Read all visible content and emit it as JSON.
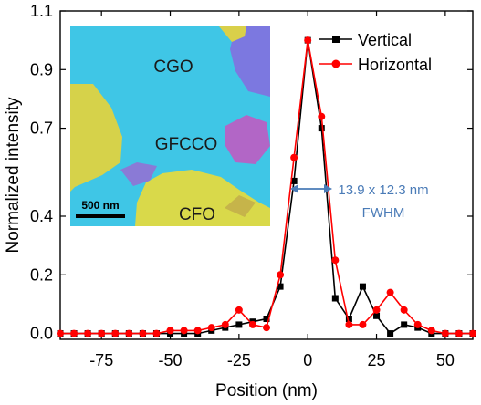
{
  "chart_data": {
    "type": "line",
    "xlabel": "Position (nm)",
    "ylabel": "Normalized intensity",
    "xlim": [
      -90,
      60
    ],
    "ylim": [
      -0.02,
      1.1
    ],
    "x_ticks": [
      -75,
      -50,
      -25,
      0,
      25,
      50
    ],
    "x_tick_labels": [
      "-75",
      "-50",
      "-25",
      "0",
      "25",
      "50"
    ],
    "y_ticks": [
      0.0,
      0.2,
      0.4,
      0.7,
      0.9,
      1.1
    ],
    "y_tick_labels": [
      "0.0",
      "0.2",
      "0.4",
      "0.7",
      "0.9",
      "1.1"
    ],
    "legend_position": "top-right",
    "series": [
      {
        "name": "Vertical",
        "color": "#000000",
        "marker": "square",
        "x": [
          -90,
          -85,
          -80,
          -75,
          -70,
          -65,
          -60,
          -55,
          -50,
          -45,
          -40,
          -35,
          -30,
          -25,
          -20,
          -15,
          -10,
          -5,
          0,
          5,
          10,
          15,
          20,
          25,
          30,
          35,
          40,
          45,
          50,
          55,
          60
        ],
        "y": [
          0.0,
          0.0,
          0.0,
          0.0,
          0.0,
          0.0,
          0.0,
          0.0,
          0.0,
          0.0,
          0.0,
          0.01,
          0.02,
          0.03,
          0.04,
          0.05,
          0.16,
          0.52,
          1.0,
          0.7,
          0.12,
          0.05,
          0.16,
          0.06,
          0.0,
          0.03,
          0.02,
          0.0,
          0.0,
          0.0,
          0.0
        ]
      },
      {
        "name": "Horizontal",
        "color": "#ff0000",
        "marker": "circle",
        "x": [
          -90,
          -85,
          -80,
          -75,
          -70,
          -65,
          -60,
          -55,
          -50,
          -45,
          -40,
          -35,
          -30,
          -25,
          -20,
          -15,
          -10,
          -5,
          0,
          5,
          10,
          15,
          20,
          25,
          30,
          35,
          40,
          45,
          50,
          55,
          60
        ],
        "y": [
          0.0,
          0.0,
          0.0,
          0.0,
          0.0,
          0.0,
          0.0,
          0.0,
          0.01,
          0.01,
          0.01,
          0.02,
          0.03,
          0.08,
          0.03,
          0.02,
          0.2,
          0.6,
          1.0,
          0.74,
          0.25,
          0.03,
          0.03,
          0.08,
          0.14,
          0.08,
          0.03,
          0.01,
          0.0,
          0.0,
          0.0
        ]
      }
    ],
    "inset": {
      "labels": [
        "CGO",
        "GFCCO",
        "CFO"
      ],
      "scalebar_label": "500 nm"
    },
    "annotation": {
      "line1": "13.9 x 12.3 nm",
      "line2": "FWHM",
      "color": "#4a7bb7"
    }
  }
}
